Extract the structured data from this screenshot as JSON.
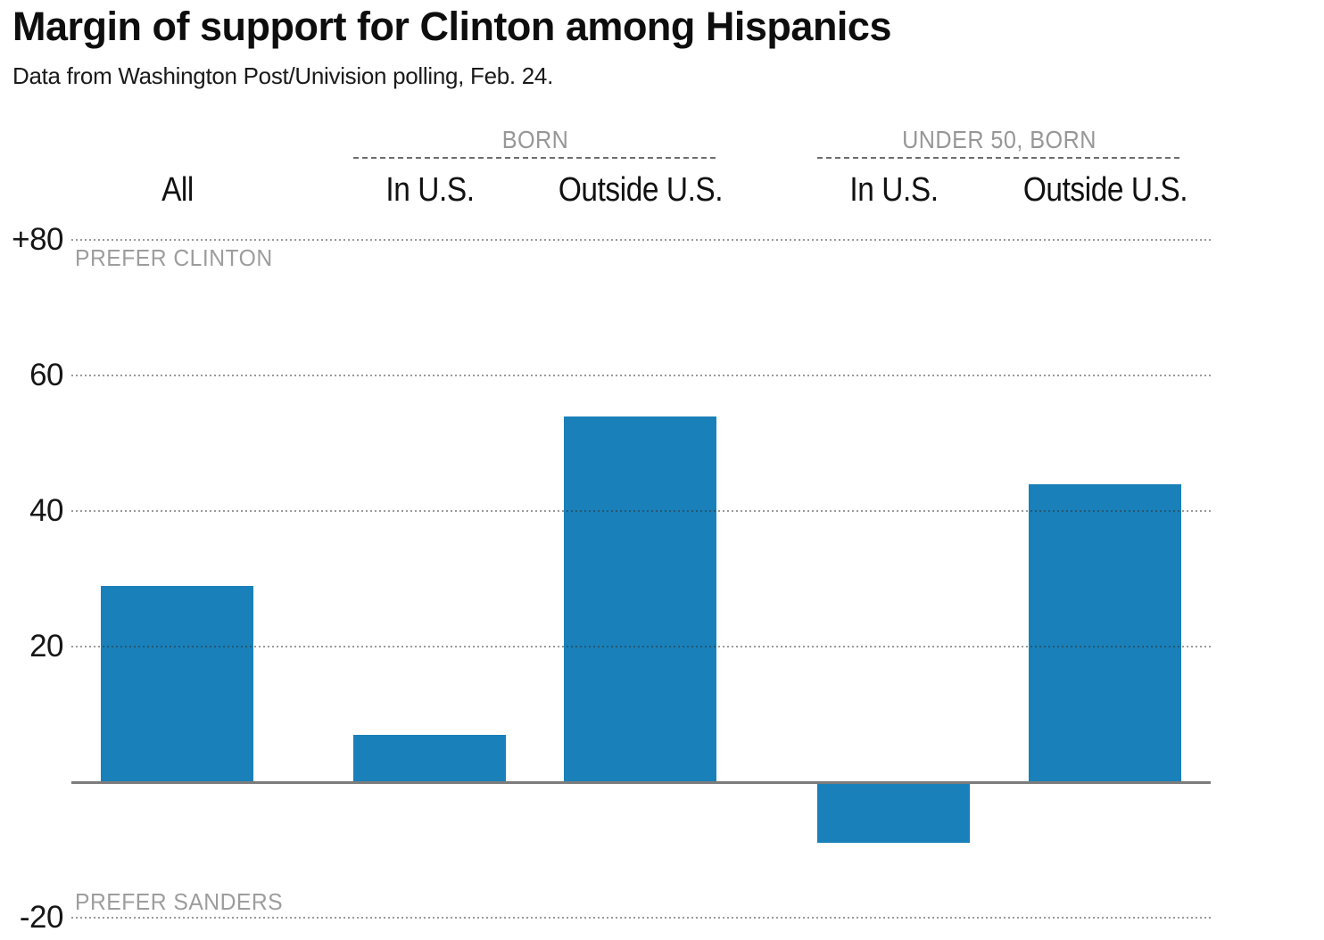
{
  "header": {
    "title": "Margin of support for Clinton among Hispanics",
    "subtitle": "Data from Washington Post/Univision polling, Feb. 24."
  },
  "chart_data": {
    "type": "bar",
    "title": "Margin of support for Clinton among Hispanics",
    "subtitle": "Data from Washington Post/Univision polling, Feb. 24.",
    "categories": [
      "All",
      "In U.S.",
      "Outside U.S.",
      "In U.S.",
      "Outside U.S."
    ],
    "values": [
      29,
      7,
      54,
      -9,
      44
    ],
    "groups": [
      {
        "label": "BORN",
        "from": 1,
        "to": 2
      },
      {
        "label": "UNDER 50, BORN",
        "from": 3,
        "to": 4
      }
    ],
    "yticks": [
      {
        "value": 80,
        "label": "+80"
      },
      {
        "value": 60,
        "label": "60"
      },
      {
        "value": 40,
        "label": "40"
      },
      {
        "value": 20,
        "label": "20"
      },
      {
        "value": -20,
        "label": "-20"
      }
    ],
    "ylim": [
      -20,
      80
    ],
    "zero_baseline": 0,
    "annotations": {
      "top": "PREFER CLINTON",
      "bottom": "PREFER SANDERS"
    },
    "bar_color": "#1a80b9",
    "grid": "dotted horizontal gridlines, solid zero axis",
    "legend": "none"
  }
}
